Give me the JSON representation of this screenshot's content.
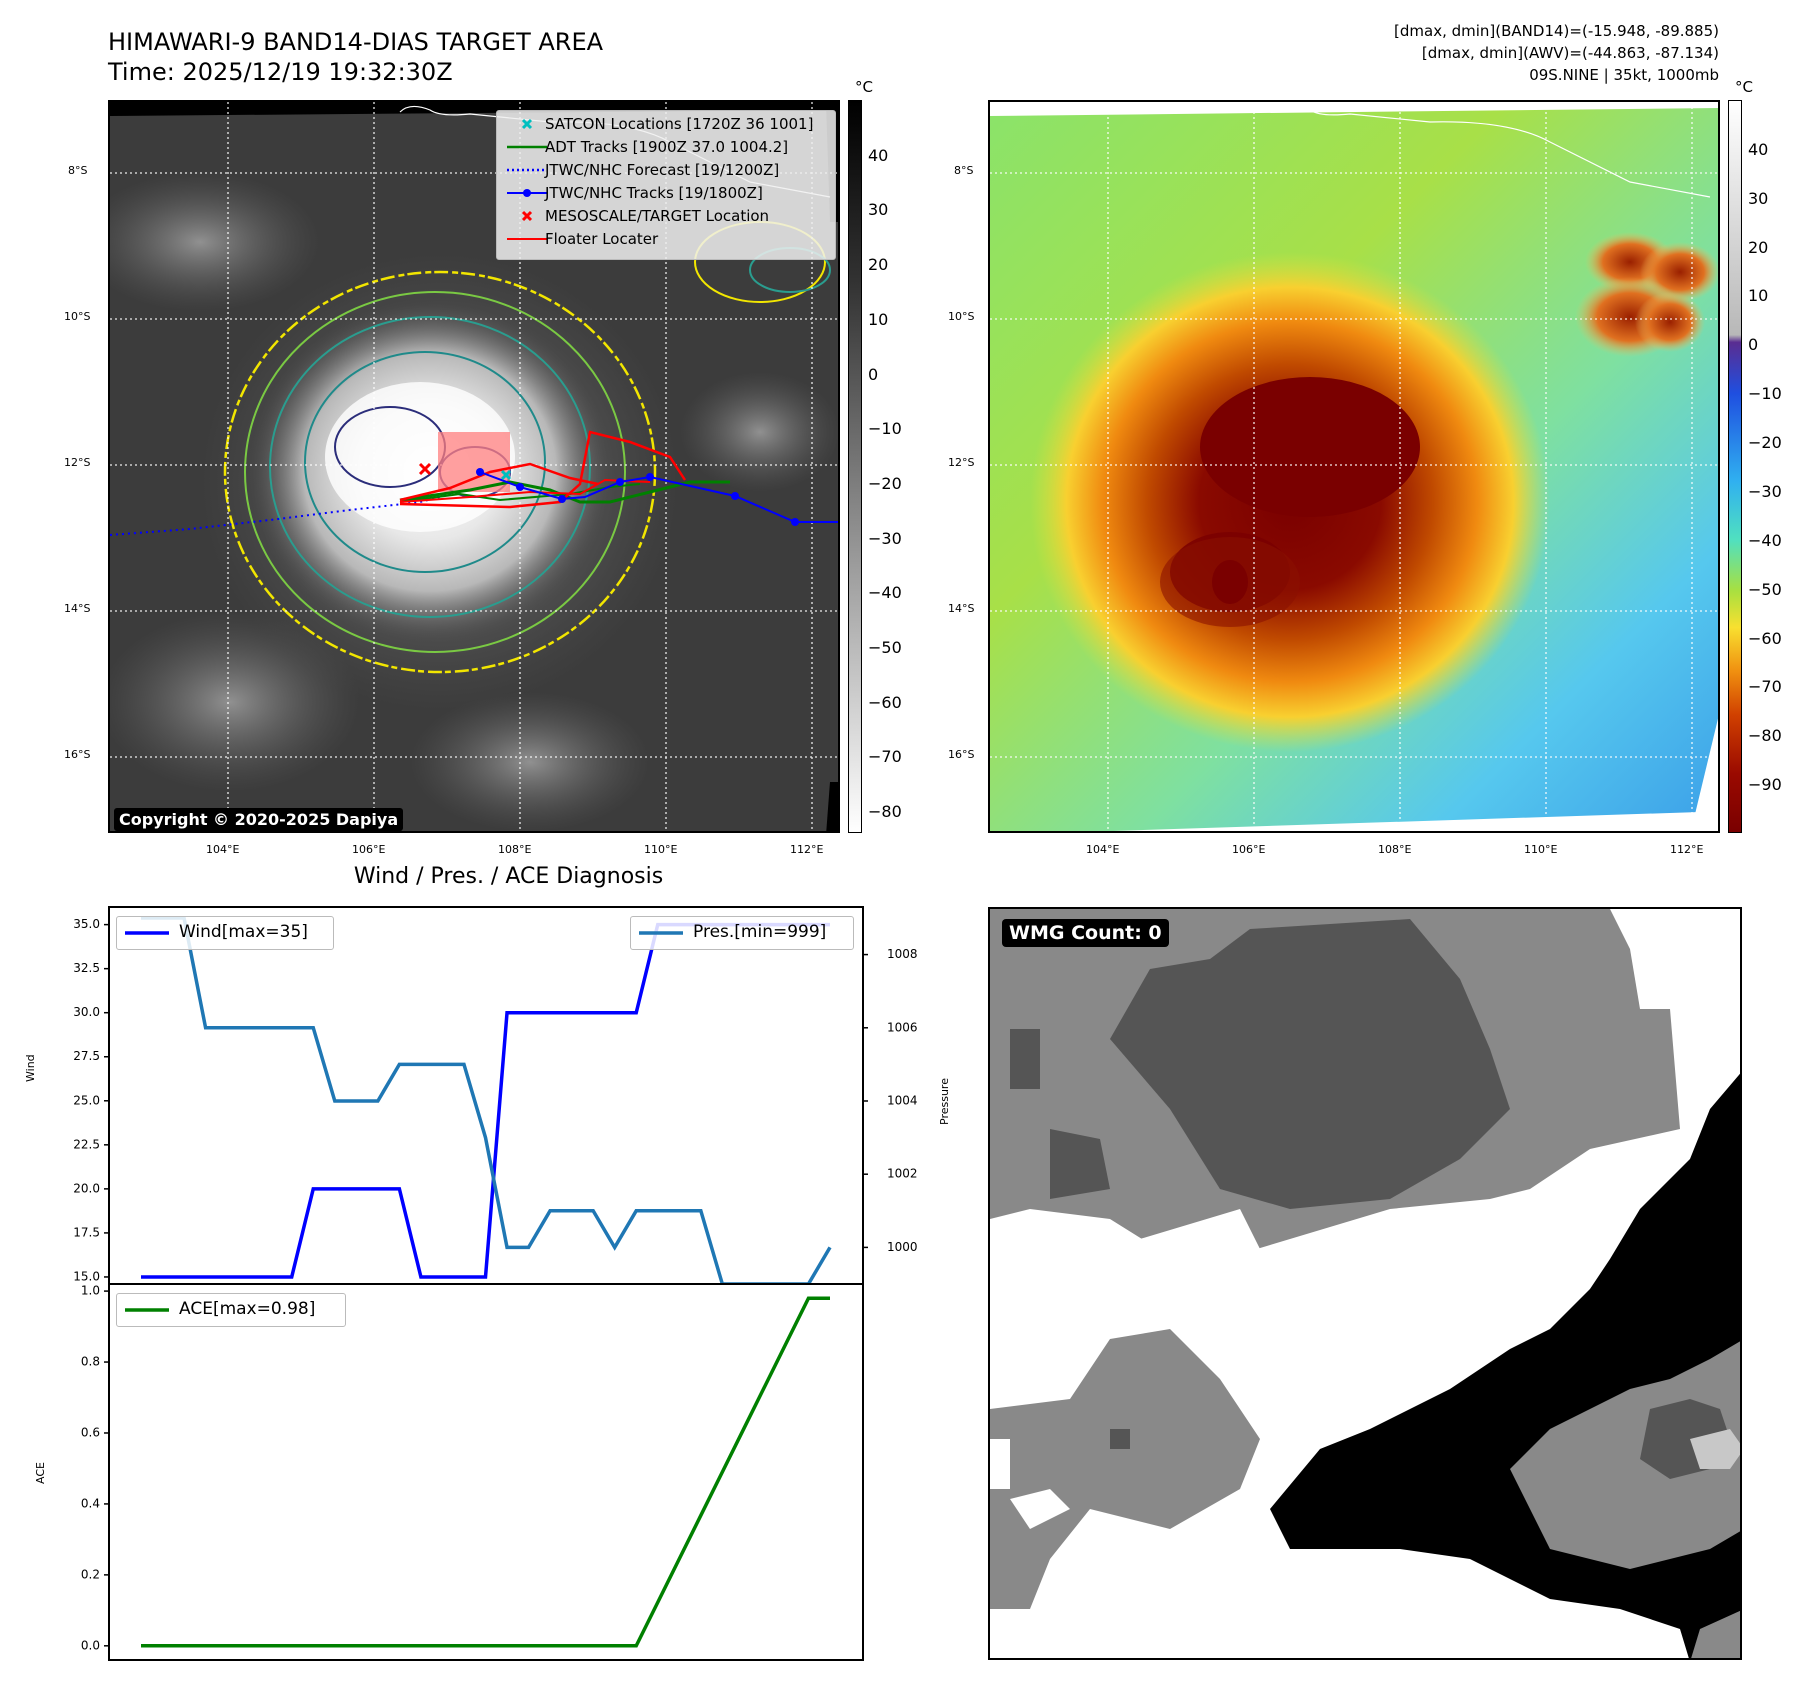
{
  "header": {
    "title_line1": "HIMAWARI-9 BAND14-DIAS TARGET AREA",
    "title_line2": "Time: 2025/12/19 19:32:30Z",
    "info_line1": "[dmax, dmin](BAND14)=(-15.948, -89.885)",
    "info_line2": "[dmax, dmin](AWV)=(-44.863, -87.134)",
    "info_line3": "09S.NINE | 35kt, 1000mb"
  },
  "map_ir": {
    "lat_ticks": [
      "8°S",
      "10°S",
      "12°S",
      "14°S",
      "16°S"
    ],
    "lon_ticks": [
      "104°E",
      "106°E",
      "108°E",
      "110°E",
      "112°E"
    ],
    "copyright": "Copyright © 2020-2025 Dapiya",
    "legend": [
      {
        "label": "SATCON Locations [1720Z 36 1001]",
        "color": "#00bfbf",
        "marker": "x"
      },
      {
        "label": "ADT Tracks [1900Z 37.0 1004.2]",
        "color": "#008000",
        "marker": "line"
      },
      {
        "label": "JTWC/NHC Forecast [19/1200Z]",
        "color": "#0000ff",
        "marker": "dotted"
      },
      {
        "label": "JTWC/NHC Tracks [19/1800Z]",
        "color": "#0000ff",
        "marker": "line-dot"
      },
      {
        "label": "MESOSCALE/TARGET Location",
        "color": "#ff0000",
        "marker": "x"
      },
      {
        "label": "Floater Locater",
        "color": "#ff0000",
        "marker": "line"
      }
    ],
    "colorbar": {
      "unit": "°C",
      "ticks": [
        "40",
        "30",
        "20",
        "10",
        "0",
        "−10",
        "−20",
        "−30",
        "−40",
        "−50",
        "−60",
        "−70",
        "−80"
      ]
    }
  },
  "map_awv": {
    "lat_ticks": [
      "8°S",
      "10°S",
      "12°S",
      "14°S",
      "16°S"
    ],
    "lon_ticks": [
      "104°E",
      "106°E",
      "108°E",
      "110°E",
      "112°E"
    ],
    "colorbar": {
      "unit": "°C",
      "ticks": [
        "40",
        "30",
        "20",
        "10",
        "0",
        "−10",
        "−20",
        "−30",
        "−40",
        "−50",
        "−60",
        "−70",
        "−80",
        "−90"
      ]
    }
  },
  "chart_data": [
    {
      "type": "line",
      "title": "Wind / Pres. / ACE Diagnosis",
      "ylabel": "Wind",
      "y2label": "Pressure",
      "ylim": [
        14.6,
        36.0
      ],
      "y2lim": [
        999.0,
        1009.3
      ],
      "yticks": [
        "35.0",
        "32.5",
        "30.0",
        "27.5",
        "25.0",
        "22.5",
        "20.0",
        "17.5",
        "15.0"
      ],
      "y2ticks": [
        "1008",
        "1006",
        "1004",
        "1002",
        "1000"
      ],
      "x": [
        0,
        1,
        2,
        3,
        4,
        5,
        6,
        7,
        8,
        9,
        10,
        11,
        12,
        13,
        14,
        15,
        16,
        17,
        18,
        19,
        20,
        21,
        22,
        23,
        24,
        25,
        26,
        27,
        28,
        29,
        30,
        31,
        32
      ],
      "series": [
        {
          "name": "Wind[max=35]",
          "color": "#0000ff",
          "axis": "left",
          "values": [
            15,
            15,
            15,
            15,
            15,
            15,
            15,
            15,
            20,
            20,
            20,
            20,
            20,
            15,
            15,
            15,
            15,
            30,
            30,
            30,
            30,
            30,
            30,
            30,
            35,
            35,
            35,
            35,
            35,
            35,
            35,
            35,
            35
          ]
        },
        {
          "name": "Pres.[min=999]",
          "color": "#1f77b4",
          "axis": "right",
          "values": [
            1009,
            1009,
            1009,
            1006,
            1006,
            1006,
            1006,
            1006,
            1006,
            1004,
            1004,
            1004,
            1005,
            1005,
            1005,
            1005,
            1003,
            1000,
            1000,
            1001,
            1001,
            1001,
            1000,
            1001,
            1001,
            1001,
            1001,
            999,
            999,
            999,
            999,
            999,
            1000
          ]
        }
      ]
    },
    {
      "type": "line",
      "ylabel": "ACE",
      "ylim": [
        -0.04,
        1.02
      ],
      "yticks": [
        "1.0",
        "0.8",
        "0.6",
        "0.4",
        "0.2",
        "0.0"
      ],
      "x": [
        0,
        1,
        2,
        3,
        4,
        5,
        6,
        7,
        8,
        9,
        10,
        11,
        12,
        13,
        14,
        15,
        16,
        17,
        18,
        19,
        20,
        21,
        22,
        23,
        24,
        25,
        26,
        27,
        28,
        29,
        30,
        31,
        32
      ],
      "series": [
        {
          "name": "ACE[max=0.98]",
          "color": "#008000",
          "values": [
            0,
            0,
            0,
            0,
            0,
            0,
            0,
            0,
            0,
            0,
            0,
            0,
            0,
            0,
            0,
            0,
            0,
            0,
            0,
            0,
            0,
            0,
            0,
            0,
            0.1225,
            0.245,
            0.3675,
            0.49,
            0.6125,
            0.735,
            0.8575,
            0.98,
            0.98
          ]
        }
      ]
    }
  ],
  "wmg": {
    "badge": "WMG Count: 0"
  }
}
